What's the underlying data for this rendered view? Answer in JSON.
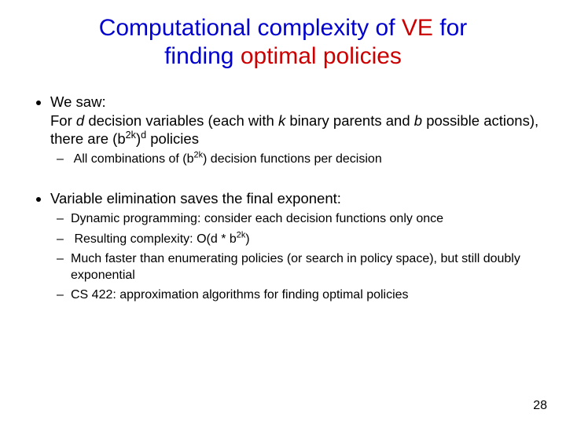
{
  "title": {
    "line1_part1": "Computational complexity of ",
    "line1_part2": "VE",
    "line1_part3": " for",
    "line2_part1": "finding ",
    "line2_part2": "optimal policies",
    "color_main": "#0000cc",
    "color_accent": "#cc0000",
    "fontsize": 30
  },
  "body_fontsize": 18.5,
  "sub_fontsize": 16,
  "bullets": [
    {
      "lead": "We saw:",
      "para_before_d": "For ",
      "d": "d",
      "para_after_d_before_k": " decision variables (each with ",
      "k": "k",
      "para_after_k": " binary parents and ",
      "b": "b",
      "para_after_b_before_formula": " possible actions), there are (b",
      "exp_2k": "2k",
      "after_paren": ")",
      "exp_d": "d",
      "after_formula": " policies",
      "sub": [
        {
          "pre": "All combinations of (b",
          "exp": "2k",
          "post": ") decision functions per decision"
        }
      ]
    },
    {
      "text": "Variable elimination saves the final exponent:",
      "sub": [
        {
          "text": "Dynamic programming: consider each decision functions only once"
        },
        {
          "pre": "Resulting complexity: O(d * b",
          "exp": "2k",
          "post": ")"
        },
        {
          "text": "Much faster than enumerating policies (or search in policy space), but still doubly exponential"
        },
        {
          "text": "CS 422: approximation algorithms for finding optimal policies"
        }
      ]
    }
  ],
  "page_number": "28"
}
